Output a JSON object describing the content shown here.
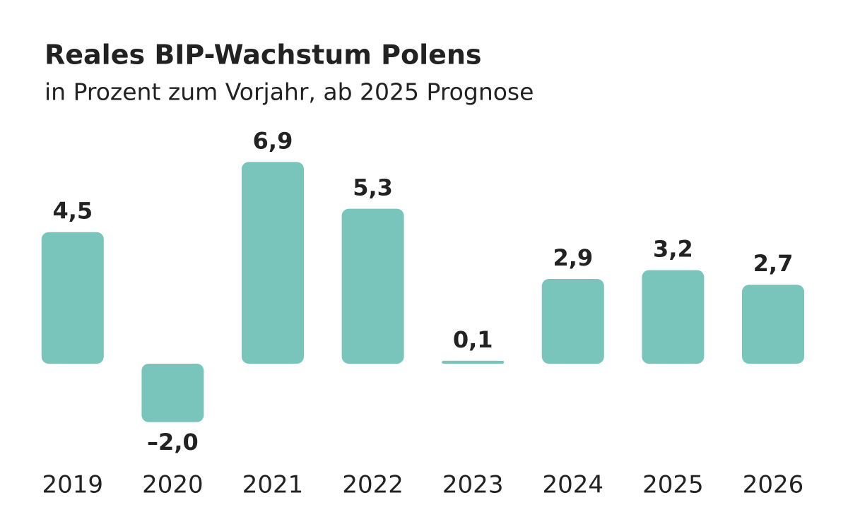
{
  "chart_data": {
    "type": "bar",
    "title": "Reales BIP-Wachstum Polens",
    "subtitle": "in Prozent zum Vorjahr, ab 2025 Prognose",
    "categories": [
      "2019",
      "2020",
      "2021",
      "2022",
      "2023",
      "2024",
      "2025",
      "2026"
    ],
    "values": [
      4.5,
      -2.0,
      6.9,
      5.3,
      0.1,
      2.9,
      3.2,
      2.7
    ],
    "value_labels": [
      "4,5",
      "–2,0",
      "6,9",
      "5,3",
      "0,1",
      "2,9",
      "3,2",
      "2,7"
    ],
    "color": "#79c4bb"
  }
}
